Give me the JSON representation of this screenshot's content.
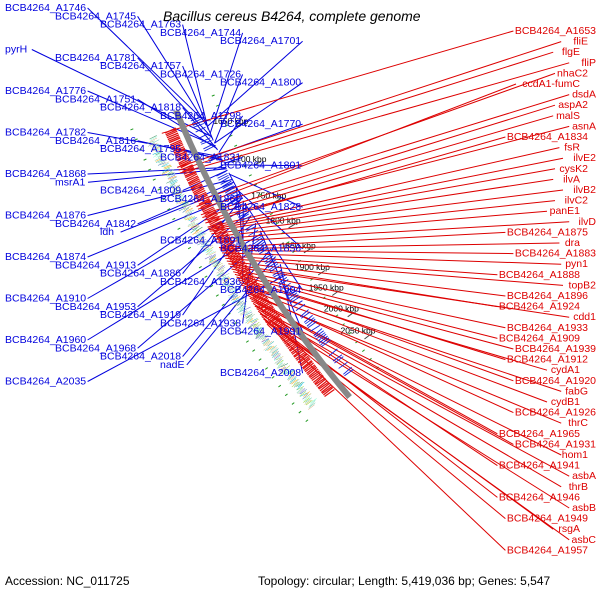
{
  "title": "Bacillus cereus B4264, complete genome",
  "accession_text": "Accession: NC_011725",
  "summary_text": "Topology: circular; Length: 5,419,036 bp; Genes: 5,547",
  "colors": {
    "forward_label": "#0000dd",
    "reverse_label": "#dd0000",
    "forward_gene": "#1020e0",
    "reverse_gene": "#e01010",
    "backbone": "#888888",
    "dots": "#229922"
  },
  "ticks": [
    {
      "label": "1650 kbp",
      "t": 0.08
    },
    {
      "label": "1700 kbp",
      "t": 0.225
    },
    {
      "label": "1750 kbp",
      "t": 0.37
    },
    {
      "label": "1800 kbp",
      "t": 0.47
    },
    {
      "label": "1850 kbp",
      "t": 0.57
    },
    {
      "label": "1900 kbp",
      "t": 0.66
    },
    {
      "label": "1950 kbp",
      "t": 0.745
    },
    {
      "label": "2000 kbp",
      "t": 0.835
    },
    {
      "label": "2050 kbp",
      "t": 0.93
    }
  ],
  "forward_labels": [
    {
      "text": "BCB4264_A1746",
      "t": 0.02
    },
    {
      "text": "BCB4264_A1745",
      "t": 0.035
    },
    {
      "text": "BCB4264_A1763",
      "t": 0.05
    },
    {
      "text": "BCB4264_A1744",
      "t": 0.065
    },
    {
      "text": "BCB4264_A1701",
      "t": 0.04
    },
    {
      "text": "pyrH",
      "t": 0.075
    },
    {
      "text": "BCB4264_A1781",
      "t": 0.08
    },
    {
      "text": "BCB4264_A1757",
      "t": 0.09
    },
    {
      "text": "BCB4264_A1726",
      "t": 0.1
    },
    {
      "text": "BCB4264_A1800",
      "t": 0.1
    },
    {
      "text": "BCB4264_A1776",
      "t": 0.11
    },
    {
      "text": "BCB4264_A1751",
      "t": 0.12
    },
    {
      "text": "BCB4264_A1818",
      "t": 0.125
    },
    {
      "text": "BCB4264_A1798",
      "t": 0.135
    },
    {
      "text": "BCB4264_A1770",
      "t": 0.14
    },
    {
      "text": "BCB4264_A1782",
      "t": 0.15
    },
    {
      "text": "BCB4264_A1816",
      "t": 0.16
    },
    {
      "text": "BCB4264_A1795",
      "t": 0.165
    },
    {
      "text": "BCB4264_A1831",
      "t": 0.175
    },
    {
      "text": "BCB4264_A1801",
      "t": 0.18
    },
    {
      "text": "BCB4264_A1868",
      "t": 0.19
    },
    {
      "text": "msrA1",
      "t": 0.195
    },
    {
      "text": "BCB4264_A1809",
      "t": 0.2
    },
    {
      "text": "BCB4264_A1860",
      "t": 0.21
    },
    {
      "text": "BCB4264_A1828",
      "t": 0.215
    },
    {
      "text": "BCB4264_A1876",
      "t": 0.235
    },
    {
      "text": "BCB4264_A1842",
      "t": 0.245
    },
    {
      "text": "ldh",
      "t": 0.26
    },
    {
      "text": "BCB4264_A1891",
      "t": 0.265
    },
    {
      "text": "BCB4264_A1856",
      "t": 0.275
    },
    {
      "text": "BCB4264_A1874",
      "t": 0.29
    },
    {
      "text": "BCB4264_A1913",
      "t": 0.295
    },
    {
      "text": "BCB4264_A1886",
      "t": 0.305
    },
    {
      "text": "BCB4264_A1936",
      "t": 0.315
    },
    {
      "text": "BCB4264_A1904",
      "t": 0.325
    },
    {
      "text": "BCB4264_A1910",
      "t": 0.34
    },
    {
      "text": "BCB4264_A1953",
      "t": 0.355
    },
    {
      "text": "BCB4264_A1919",
      "t": 0.37
    },
    {
      "text": "BCB4264_A1938",
      "t": 0.4
    },
    {
      "text": "BCB4264_A1991",
      "t": 0.43
    },
    {
      "text": "BCB4264_A1960",
      "t": 0.44
    },
    {
      "text": "BCB4264_A1968",
      "t": 0.46
    },
    {
      "text": "BCB4264_A2018",
      "t": 0.5
    },
    {
      "text": "nadE",
      "t": 0.53
    },
    {
      "text": "BCB4264_A2008",
      "t": 0.56
    },
    {
      "text": "BCB4264_A2035",
      "t": 0.6
    }
  ],
  "reverse_labels": [
    {
      "text": "BCB4264_A1653",
      "t": 0.0
    },
    {
      "text": "fliE",
      "t": 0.12
    },
    {
      "text": "flgE",
      "t": 0.13
    },
    {
      "text": "fliP",
      "t": 0.14
    },
    {
      "text": "nhaC2",
      "t": 0.245
    },
    {
      "text": "ccdA1-fumC",
      "t": 0.26
    },
    {
      "text": "dsdA",
      "t": 0.27
    },
    {
      "text": "aspA2",
      "t": 0.29
    },
    {
      "text": "malS",
      "t": 0.3
    },
    {
      "text": "asnA",
      "t": 0.31
    },
    {
      "text": "BCB4264_A1834",
      "t": 0.32
    },
    {
      "text": "fsR",
      "t": 0.335
    },
    {
      "text": "ilvE2",
      "t": 0.34
    },
    {
      "text": "cysK2",
      "t": 0.345
    },
    {
      "text": "ilvA",
      "t": 0.35
    },
    {
      "text": "ilvB2",
      "t": 0.36
    },
    {
      "text": "ilvC2",
      "t": 0.37
    },
    {
      "text": "panE1",
      "t": 0.38
    },
    {
      "text": "ilvD",
      "t": 0.39
    },
    {
      "text": "BCB4264_A1875",
      "t": 0.41
    },
    {
      "text": "dra",
      "t": 0.415
    },
    {
      "text": "BCB4264_A1883",
      "t": 0.42
    },
    {
      "text": "pyn1",
      "t": 0.43
    },
    {
      "text": "BCB4264_A1888",
      "t": 0.44
    },
    {
      "text": "topB2",
      "t": 0.45
    },
    {
      "text": "BCB4264_A1896",
      "t": 0.46
    },
    {
      "text": "BCB4264_A1924",
      "t": 0.47
    },
    {
      "text": "cdd1",
      "t": 0.48
    },
    {
      "text": "BCB4264_A1933",
      "t": 0.49
    },
    {
      "text": "BCB4264_A1909",
      "t": 0.5
    },
    {
      "text": "BCB4264_A1939",
      "t": 0.51
    },
    {
      "text": "BCB4264_A1912",
      "t": 0.52
    },
    {
      "text": "cydA1",
      "t": 0.53
    },
    {
      "text": "BCB4264_A1920",
      "t": 0.54
    },
    {
      "text": "fabG",
      "t": 0.55
    },
    {
      "text": "cydB1",
      "t": 0.56
    },
    {
      "text": "BCB4264_A1926",
      "t": 0.57
    },
    {
      "text": "thrC",
      "t": 0.58
    },
    {
      "text": "BCB4264_A1965",
      "t": 0.59
    },
    {
      "text": "BCB4264_A1931",
      "t": 0.6
    },
    {
      "text": "hom1",
      "t": 0.61
    },
    {
      "text": "BCB4264_A1941",
      "t": 0.62
    },
    {
      "text": "asbA",
      "t": 0.63
    },
    {
      "text": "thrB",
      "t": 0.64
    },
    {
      "text": "BCB4264_A1946",
      "t": 0.65
    },
    {
      "text": "asbB",
      "t": 0.66
    },
    {
      "text": "BCB4264_A1949",
      "t": 0.67
    },
    {
      "text": "rsgA",
      "t": 0.68
    },
    {
      "text": "asbC",
      "t": 0.69
    },
    {
      "text": "BCB4264_A1957",
      "t": 0.7
    }
  ]
}
